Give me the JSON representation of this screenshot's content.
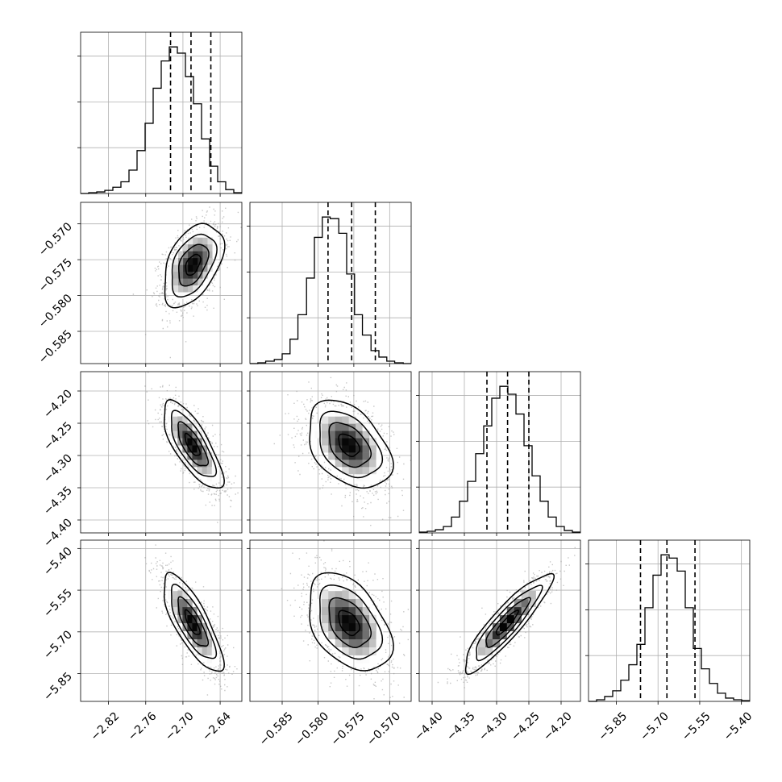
{
  "chart_data": {
    "type": "corner",
    "parameters": 4,
    "style": {
      "hist_color": "#000000",
      "contour_color": "#000000",
      "scatter_color": "#999999",
      "density_cmap": [
        "#ffffff",
        "#000000"
      ],
      "grid": true
    },
    "axes": [
      {
        "range": [
          -2.865,
          -2.605
        ],
        "ticks": [
          -2.82,
          -2.76,
          -2.7,
          -2.64
        ],
        "tick_labels": [
          "−2.82",
          "−2.76",
          "−2.70",
          "−2.64"
        ]
      },
      {
        "range": [
          -0.5895,
          -0.567
        ],
        "ticks": [
          -0.585,
          -0.58,
          -0.575,
          -0.57
        ],
        "tick_labels": [
          "−0.585",
          "−0.580",
          "−0.575",
          "−0.570"
        ]
      },
      {
        "range": [
          -4.42,
          -4.17
        ],
        "ticks": [
          -4.4,
          -4.35,
          -4.3,
          -4.25,
          -4.2
        ],
        "tick_labels": [
          "−4.40",
          "−4.35",
          "−4.30",
          "−4.25",
          "−4.20"
        ]
      },
      {
        "range": [
          -5.95,
          -5.37
        ],
        "ticks": [
          -5.85,
          -5.7,
          -5.55,
          -5.4
        ],
        "tick_labels": [
          "−5.85",
          "−5.70",
          "−5.55",
          "−5.40"
        ]
      }
    ],
    "marginals": [
      {
        "param": 0,
        "quantiles": [
          -2.72,
          -2.687,
          -2.655
        ],
        "bin_edges": [
          -2.865,
          -2.852,
          -2.839,
          -2.826,
          -2.813,
          -2.8,
          -2.787,
          -2.774,
          -2.761,
          -2.748,
          -2.735,
          -2.722,
          -2.709,
          -2.696,
          -2.683,
          -2.67,
          -2.657,
          -2.644,
          -2.631,
          -2.618,
          -2.605
        ],
        "counts": [
          0,
          1,
          2,
          4,
          8,
          15,
          30,
          55,
          90,
          135,
          170,
          188,
          180,
          150,
          115,
          70,
          35,
          15,
          5,
          1
        ]
      },
      {
        "param": 1,
        "quantiles": [
          -0.5786,
          -0.5753,
          -0.572
        ],
        "bin_edges": [
          -0.5895,
          -0.5884,
          -0.5873,
          -0.5861,
          -0.585,
          -0.5839,
          -0.5828,
          -0.5816,
          -0.5805,
          -0.5794,
          -0.5783,
          -0.5771,
          -0.576,
          -0.5749,
          -0.5738,
          -0.5726,
          -0.5715,
          -0.5704,
          -0.5693,
          -0.5681,
          -0.567
        ],
        "counts": [
          0,
          1,
          3,
          5,
          12,
          30,
          60,
          105,
          155,
          180,
          178,
          160,
          110,
          60,
          35,
          16,
          8,
          3,
          1,
          0
        ]
      },
      {
        "param": 2,
        "quantiles": [
          -4.315,
          -4.283,
          -4.25
        ],
        "bin_edges": [
          -4.42,
          -4.4075,
          -4.395,
          -4.3825,
          -4.37,
          -4.3575,
          -4.345,
          -4.3325,
          -4.32,
          -4.3075,
          -4.295,
          -4.2825,
          -4.27,
          -4.2575,
          -4.245,
          -4.2325,
          -4.22,
          -4.2075,
          -4.195,
          -4.1825,
          -4.17
        ],
        "counts": [
          1,
          2,
          4,
          8,
          20,
          40,
          65,
          100,
          135,
          170,
          185,
          175,
          150,
          110,
          72,
          40,
          20,
          8,
          3,
          1
        ]
      },
      {
        "param": 3,
        "quantiles": [
          -5.763,
          -5.668,
          -5.567
        ],
        "bin_edges": [
          -5.95,
          -5.921,
          -5.892,
          -5.863,
          -5.834,
          -5.805,
          -5.776,
          -5.747,
          -5.718,
          -5.689,
          -5.66,
          -5.631,
          -5.602,
          -5.573,
          -5.544,
          -5.515,
          -5.486,
          -5.457,
          -5.428,
          -5.399,
          -5.37
        ],
        "counts": [
          0,
          2,
          6,
          13,
          26,
          45,
          70,
          115,
          155,
          180,
          176,
          160,
          115,
          65,
          40,
          22,
          10,
          4,
          2,
          1
        ]
      }
    ],
    "joints": [
      {
        "x": 0,
        "y": 1,
        "mean": [
          -2.684,
          -0.5757
        ],
        "sd": [
          0.024,
          0.0029
        ],
        "corr": 0.45
      },
      {
        "x": 0,
        "y": 2,
        "mean": [
          -2.685,
          -4.284
        ],
        "sd": [
          0.024,
          0.034
        ],
        "corr": -0.75
      },
      {
        "x": 1,
        "y": 2,
        "mean": [
          -0.5757,
          -4.284
        ],
        "sd": [
          0.0029,
          0.034
        ],
        "corr": -0.4
      },
      {
        "x": 0,
        "y": 3,
        "mean": [
          -2.685,
          -5.668
        ],
        "sd": [
          0.024,
          0.088
        ],
        "corr": -0.78
      },
      {
        "x": 1,
        "y": 3,
        "mean": [
          -0.5757,
          -5.668
        ],
        "sd": [
          0.0029,
          0.088
        ],
        "corr": -0.42
      },
      {
        "x": 2,
        "y": 3,
        "mean": [
          -4.284,
          -5.668
        ],
        "sd": [
          0.034,
          0.088
        ],
        "corr": 0.9
      }
    ],
    "contour_levels_sigma": [
      0.5,
      1.0,
      1.5,
      2.0
    ]
  }
}
